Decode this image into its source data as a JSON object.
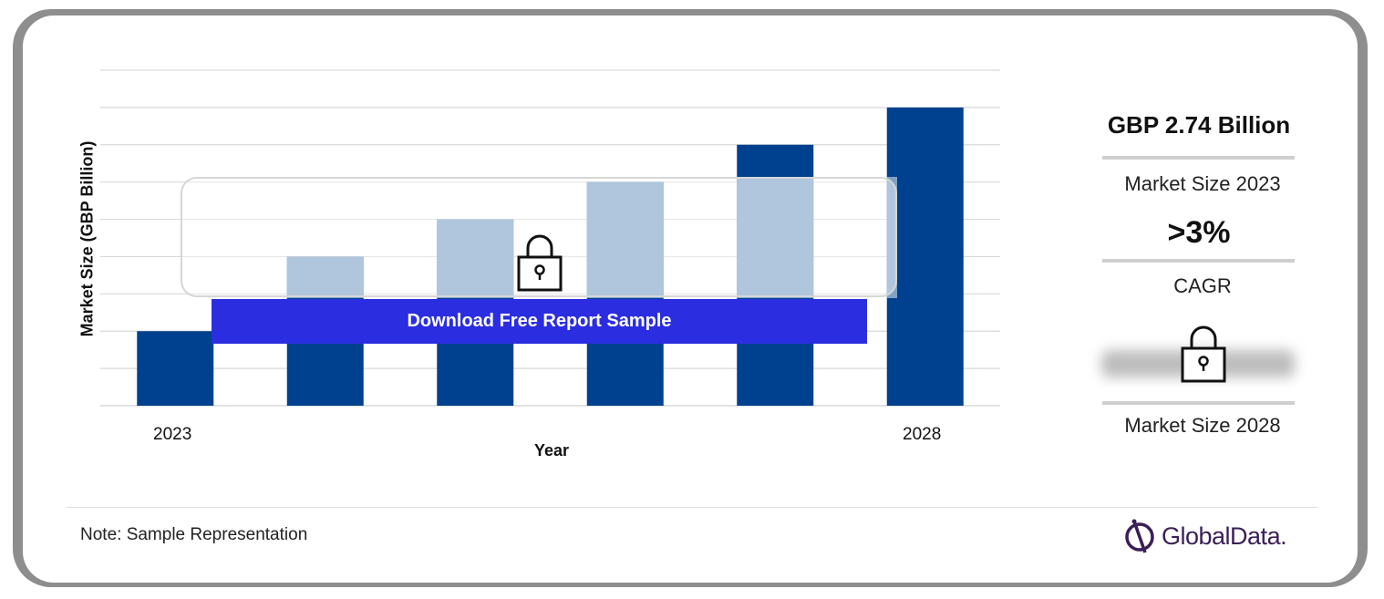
{
  "chart_data": {
    "type": "bar",
    "categories": [
      "2023",
      "",
      "",
      "",
      "",
      "2028"
    ],
    "values": [
      2.0,
      4.0,
      5.0,
      6.0,
      7.0,
      8.0
    ],
    "xlabel": "Year",
    "ylabel": "Market Size (GBP Billion)",
    "ylim": [
      0,
      9
    ],
    "grid": true,
    "legend": "none",
    "colors": {
      "bar": "#00418f",
      "bar_faded": "#7fa3c8",
      "grid": "#d9d9d9"
    }
  },
  "overlay": {
    "download_label": "Download Free Report Sample",
    "lock_icon": "lock-icon"
  },
  "summary": {
    "market_size_value": "GBP 2.74 Billion",
    "market_size_label": "Market Size 2023",
    "cagr_value": ">3%",
    "cagr_label": "CAGR",
    "future_label": "Market Size 2028"
  },
  "footer": {
    "note": "Note: Sample Representation",
    "brand": "GlobalData."
  }
}
